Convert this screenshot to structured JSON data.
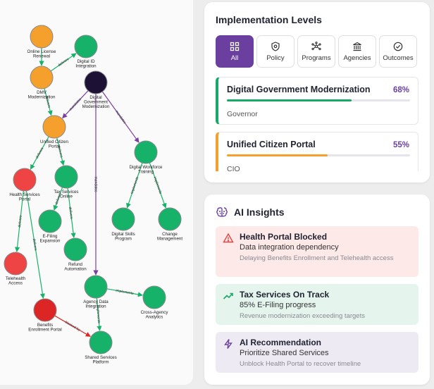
{
  "graph": {
    "nodes": [
      {
        "id": "n1",
        "label": [
          "Online License",
          "Renewal"
        ],
        "color": "#f5a02d"
      },
      {
        "id": "n2",
        "label": [
          "Digital ID",
          "Integration"
        ],
        "color": "#17b26a"
      },
      {
        "id": "n3",
        "label": [
          "DMV",
          "Modernization"
        ],
        "color": "#f5a02d"
      },
      {
        "id": "n4",
        "label": [
          "Digital",
          "Government",
          "Modernization"
        ],
        "color": "#1d1236"
      },
      {
        "id": "n5",
        "label": [
          "Unified Citizen",
          "Portal"
        ],
        "color": "#f5a02d"
      },
      {
        "id": "n6",
        "label": [
          "Digital Workforce",
          "Training"
        ],
        "color": "#17b26a"
      },
      {
        "id": "n7",
        "label": [
          "Health Services",
          "Portal"
        ],
        "color": "#ef4444"
      },
      {
        "id": "n8",
        "label": [
          "Tax Services",
          "Online"
        ],
        "color": "#17b26a"
      },
      {
        "id": "n9",
        "label": [
          "E-Filing",
          "Expansion"
        ],
        "color": "#17b26a"
      },
      {
        "id": "n10",
        "label": [
          "Digital Skills",
          "Program"
        ],
        "color": "#17b26a"
      },
      {
        "id": "n11",
        "label": [
          "Change",
          "Management"
        ],
        "color": "#17b26a"
      },
      {
        "id": "n12",
        "label": [
          "Refund",
          "Automation"
        ],
        "color": "#17b26a"
      },
      {
        "id": "n13",
        "label": [
          "Telehealth",
          "Access"
        ],
        "color": "#ef4444"
      },
      {
        "id": "n14",
        "label": [
          "Agency Data",
          "Integration"
        ],
        "color": "#17b26a"
      },
      {
        "id": "n15",
        "label": [
          "Cross-Agency",
          "Analytics"
        ],
        "color": "#17b26a"
      },
      {
        "id": "n16",
        "label": [
          "Benefits",
          "Enrollment Portal"
        ],
        "color": "#dc2626"
      },
      {
        "id": "n17",
        "label": [
          "Shared Services",
          "Platform"
        ],
        "color": "#17b26a"
      }
    ],
    "edges": [
      {
        "from": "n1",
        "to": "n3",
        "label": "",
        "color": "#17b26a"
      },
      {
        "from": "n3",
        "to": "n2",
        "label": "delivers",
        "color": "#17b26a"
      },
      {
        "from": "n4",
        "to": "n5",
        "label": "mandates",
        "color": "#7b3fa0"
      },
      {
        "from": "n3",
        "to": "n5",
        "label": "delivers",
        "color": "#17b26a"
      },
      {
        "from": "n4",
        "to": "n6",
        "label": "mandates",
        "color": "#7b3fa0"
      },
      {
        "from": "n4",
        "to": "n14",
        "label": "mandates",
        "color": "#7b3fa0"
      },
      {
        "from": "n5",
        "to": "n7",
        "label": "delivers",
        "color": "#17b26a"
      },
      {
        "from": "n5",
        "to": "n8",
        "label": "delivers",
        "color": "#17b26a"
      },
      {
        "from": "n6",
        "to": "n10",
        "label": "implements",
        "color": "#17b26a"
      },
      {
        "from": "n6",
        "to": "n11",
        "label": "implements",
        "color": "#17b26a"
      },
      {
        "from": "n8",
        "to": "n9",
        "label": "delivers",
        "color": "#17b26a"
      },
      {
        "from": "n8",
        "to": "n12",
        "label": "delivers",
        "color": "#17b26a"
      },
      {
        "from": "n7",
        "to": "n13",
        "label": "delivers",
        "color": "#17b26a"
      },
      {
        "from": "n7",
        "to": "n16",
        "label": "delivers",
        "color": "#17b26a"
      },
      {
        "from": "n14",
        "to": "n15",
        "label": "implements",
        "color": "#17b26a"
      },
      {
        "from": "n14",
        "to": "n17",
        "label": "implements",
        "color": "#17b26a"
      },
      {
        "from": "n16",
        "to": "n17",
        "label": "blocked by",
        "color": "#dc2626"
      }
    ]
  },
  "implementation": {
    "title": "Implementation Levels",
    "tabs": [
      {
        "label": "All",
        "icon": "grid-icon",
        "active": true
      },
      {
        "label": "Policy",
        "icon": "shield-icon",
        "active": false
      },
      {
        "label": "Programs",
        "icon": "network-icon",
        "active": false
      },
      {
        "label": "Agencies",
        "icon": "building-icon",
        "active": false
      },
      {
        "label": "Outcomes",
        "icon": "check-circle-icon",
        "active": false
      }
    ],
    "items": [
      {
        "name": "Digital Government Modernization",
        "percent": "68%",
        "progress": 0.68,
        "owner": "Governor",
        "color": "#18a868"
      },
      {
        "name": "Unified Citizen Portal",
        "percent": "55%",
        "progress": 0.55,
        "owner": "CIO",
        "color": "#f5a02d"
      }
    ]
  },
  "ai": {
    "title": "AI Insights",
    "insights": [
      {
        "title": "Health Portal Blocked",
        "subtitle": "Data integration dependency",
        "description": "Delaying Benefits Enrollment and Telehealth access",
        "icon": "warning-triangle-icon",
        "color": "#e04545"
      },
      {
        "title": "Tax Services On Track",
        "subtitle": "85% E-Filing progress",
        "description": "Revenue modernization exceeding targets",
        "icon": "trending-up-icon",
        "color": "#18a868"
      },
      {
        "title": "AI Recommendation",
        "subtitle": "Prioritize Shared Services",
        "description": "Unblock Health Portal to recover timeline",
        "icon": "lightning-icon",
        "color": "#6a3fa0"
      }
    ]
  }
}
